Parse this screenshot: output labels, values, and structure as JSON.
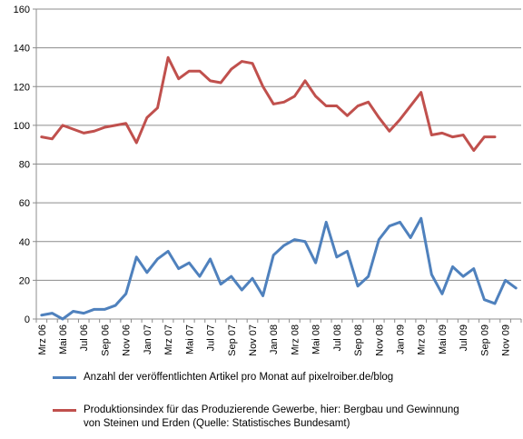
{
  "chart_data": {
    "type": "line",
    "title": "",
    "xlabel": "",
    "ylabel": "",
    "ylim": [
      0,
      160
    ],
    "yticks": [
      0,
      20,
      40,
      60,
      80,
      100,
      120,
      140,
      160
    ],
    "grid": true,
    "legend_position": "bottom",
    "x": [
      "Mrz 06",
      "Apr 06",
      "Mai 06",
      "Jun 06",
      "Jul 06",
      "Aug 06",
      "Sep 06",
      "Okt 06",
      "Nov 06",
      "Dez 06",
      "Jan 07",
      "Feb 07",
      "Mrz 07",
      "Apr 07",
      "Mai 07",
      "Jun 07",
      "Jul 07",
      "Aug 07",
      "Sep 07",
      "Okt 07",
      "Nov 07",
      "Dez 07",
      "Jan 08",
      "Feb 08",
      "Mrz 08",
      "Apr 08",
      "Mai 08",
      "Jun 08",
      "Jul 08",
      "Aug 08",
      "Sep 08",
      "Okt 08",
      "Nov 08",
      "Dez 08",
      "Jan 09",
      "Feb 09",
      "Mrz 09",
      "Apr 09",
      "Mai 09",
      "Jun 09",
      "Jul 09",
      "Aug 09",
      "Sep 09",
      "Okt 09",
      "Nov 09",
      "Dez 09"
    ],
    "tick_labels": [
      "Mrz 06",
      "Mai 06",
      "Jul 06",
      "Sep 06",
      "Nov 06",
      "Jan 07",
      "Mrz 07",
      "Mai 07",
      "Jul 07",
      "Sep 07",
      "Nov 07",
      "Jan 08",
      "Mrz 08",
      "Mai 08",
      "Jul 08",
      "Sep 08",
      "Nov 08",
      "Jan 09",
      "Mrz 09",
      "Mai 09",
      "Jul 09",
      "Sep 09",
      "Nov 09"
    ],
    "series": [
      {
        "name": "Anzahl der veröffentlichten Artikel pro Monat auf pixelroiber.de/blog",
        "color": "#4f81bd",
        "values": [
          2,
          3,
          0,
          4,
          3,
          5,
          5,
          7,
          13,
          32,
          24,
          31,
          35,
          26,
          29,
          22,
          31,
          18,
          22,
          15,
          21,
          12,
          33,
          38,
          41,
          40,
          29,
          50,
          32,
          35,
          17,
          22,
          41,
          48,
          50,
          42,
          52,
          23,
          13,
          27,
          22,
          26,
          10,
          8,
          20,
          16
        ]
      },
      {
        "name": "Produktionsindex für das Produzierende Gewerbe, hier: Bergbau und Gewinnung\nvon Steinen und Erden (Quelle: Statistisches  Bundesamt)",
        "color": "#c0504d",
        "values": [
          94,
          93,
          100,
          98,
          96,
          97,
          99,
          100,
          101,
          91,
          104,
          109,
          135,
          124,
          128,
          128,
          123,
          122,
          129,
          133,
          132,
          120,
          111,
          112,
          115,
          123,
          115,
          110,
          110,
          105,
          110,
          112,
          104,
          97,
          103,
          110,
          117,
          95,
          96,
          94,
          95,
          87,
          94,
          94,
          null,
          null
        ]
      }
    ]
  }
}
